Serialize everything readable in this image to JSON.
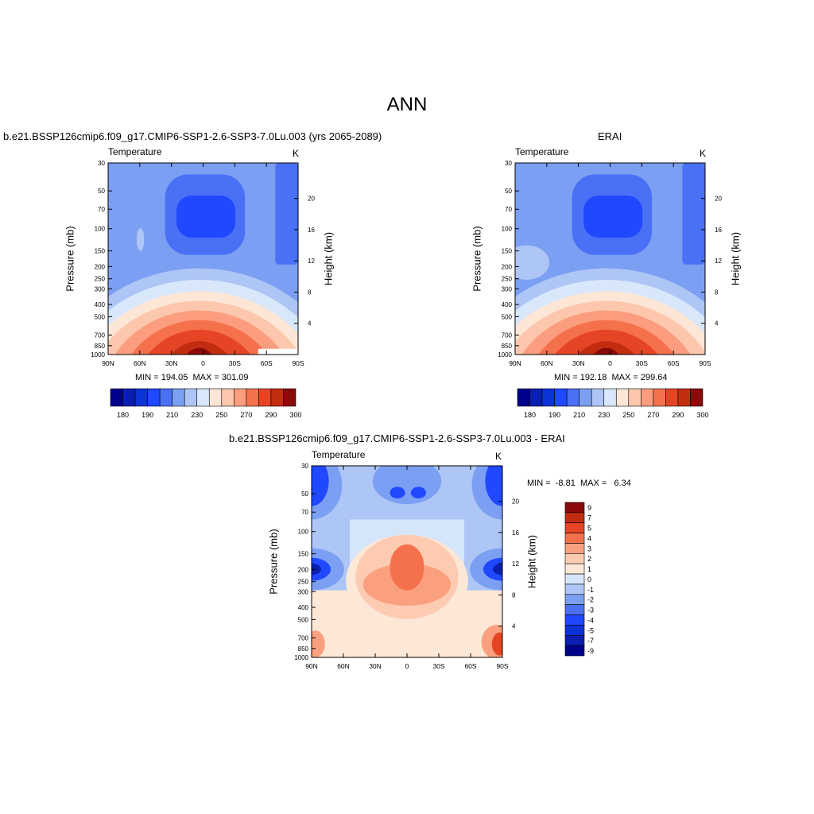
{
  "title": "ANN",
  "colors": {
    "abs": [
      "#00008c",
      "#0a1fb0",
      "#0c33d6",
      "#1f48ff",
      "#4a70f5",
      "#7b9ff2",
      "#aec6f6",
      "#d9e7fb",
      "#fde6d6",
      "#fdc7ad",
      "#fb9d7e",
      "#f5714c",
      "#e64525",
      "#c22d10",
      "#8b0a0a"
    ],
    "diff": [
      "#00008c",
      "#0a1fb0",
      "#0c33d6",
      "#1f48ff",
      "#4a70f5",
      "#7b9ff2",
      "#aec6f6",
      "#d6e6fa",
      "#fde8d8",
      "#fdcbb2",
      "#fba07e",
      "#f5714c",
      "#e64525",
      "#c22d10",
      "#8b0a0a"
    ]
  },
  "panels": {
    "p1": {
      "case": "b.e21.BSSP126cmip6.f09_g17.CMIP6-SSP1-2.6-SSP3-7.0Lu.003 (yrs 2065-2089)",
      "left": "Temperature",
      "right": "K",
      "ylabel": "Pressure (mb)",
      "y2label": "Height (km)",
      "minmax": "MIN = 194.05  MAX = 301.09"
    },
    "p2": {
      "case": "ERAI",
      "left": "Temperature",
      "right": "K",
      "ylabel": "Pressure (mb)",
      "y2label": "Height (km)",
      "minmax": "MIN = 192.18  MAX = 299.64"
    },
    "p3": {
      "case": "b.e21.BSSP126cmip6.f09_g17.CMIP6-SSP1-2.6-SSP3-7.0Lu.003 - ERAI",
      "left": "Temperature",
      "right": "K",
      "ylabel": "Pressure (mb)",
      "y2label": "Height (km)",
      "minmax": "MIN =  -8.81  MAX =   6.34"
    }
  },
  "chart_data": [
    {
      "type": "heatmap",
      "title": "b.e21.BSSP126cmip6.f09_g17.CMIP6-SSP1-2.6-SSP3-7.0Lu.003 (yrs 2065-2089)",
      "xlabel": "",
      "ylabel": "Pressure (mb)",
      "y2label": "Height (km)",
      "x_ticks": [
        "90N",
        "60N",
        "30N",
        "0",
        "30S",
        "60S",
        "90S"
      ],
      "y_ticks": [
        "30",
        "50",
        "70",
        "100",
        "150",
        "200",
        "250",
        "300",
        "400",
        "500",
        "700",
        "850",
        "1000"
      ],
      "y2_ticks": [
        "20",
        "16",
        "12",
        "8",
        "4"
      ],
      "colorbar_labels": [
        "180",
        "190",
        "210",
        "230",
        "250",
        "270",
        "290",
        "300"
      ],
      "min": 194.05,
      "max": 301.09,
      "units": "K"
    },
    {
      "type": "heatmap",
      "title": "ERAI",
      "xlabel": "",
      "ylabel": "Pressure (mb)",
      "y2label": "Height (km)",
      "x_ticks": [
        "90N",
        "60N",
        "30N",
        "0",
        "30S",
        "60S",
        "90S"
      ],
      "y_ticks": [
        "30",
        "50",
        "70",
        "100",
        "150",
        "200",
        "250",
        "300",
        "400",
        "500",
        "700",
        "850",
        "1000"
      ],
      "y2_ticks": [
        "20",
        "16",
        "12",
        "8",
        "4"
      ],
      "colorbar_labels": [
        "180",
        "190",
        "210",
        "230",
        "250",
        "270",
        "290",
        "300"
      ],
      "min": 192.18,
      "max": 299.64,
      "units": "K"
    },
    {
      "type": "heatmap",
      "title": "b.e21.BSSP126cmip6.f09_g17.CMIP6-SSP1-2.6-SSP3-7.0Lu.003 - ERAI",
      "xlabel": "",
      "ylabel": "Pressure (mb)",
      "y2label": "Height (km)",
      "x_ticks": [
        "90N",
        "60N",
        "30N",
        "0",
        "30S",
        "60S",
        "90S"
      ],
      "y_ticks": [
        "30",
        "50",
        "70",
        "100",
        "150",
        "200",
        "250",
        "300",
        "400",
        "500",
        "700",
        "850",
        "1000"
      ],
      "y2_ticks": [
        "20",
        "16",
        "12",
        "8",
        "4"
      ],
      "colorbar_labels": [
        "9",
        "7",
        "5",
        "4",
        "3",
        "2",
        "1",
        "0",
        "-1",
        "-2",
        "-3",
        "-4",
        "-5",
        "-7",
        "-9"
      ],
      "min": -8.81,
      "max": 6.34,
      "units": "K"
    }
  ]
}
